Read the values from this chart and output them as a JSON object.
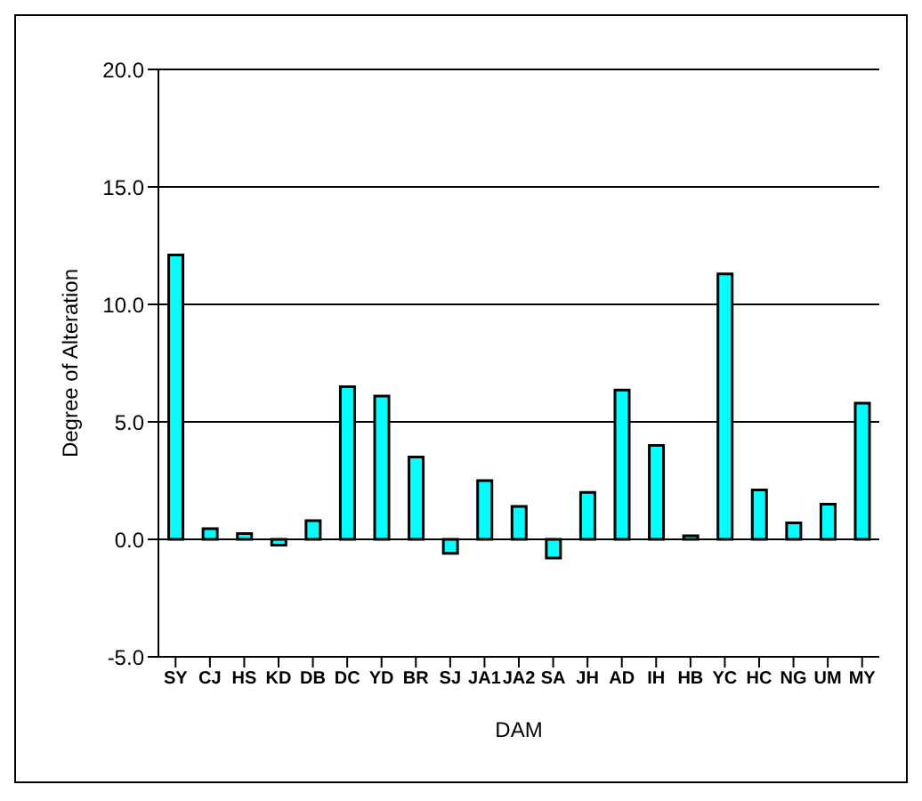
{
  "chart_data": {
    "type": "bar",
    "xlabel": "DAM",
    "ylabel": "Degree of Alteration",
    "categories": [
      "SY",
      "CJ",
      "HS",
      "KD",
      "DB",
      "DC",
      "YD",
      "BR",
      "SJ",
      "JA1",
      "JA2",
      "SA",
      "JH",
      "AD",
      "IH",
      "HB",
      "YC",
      "HC",
      "NG",
      "UM",
      "MY"
    ],
    "values": [
      12.1,
      0.45,
      0.25,
      -0.25,
      0.8,
      6.5,
      6.1,
      3.5,
      -0.6,
      2.5,
      1.4,
      -0.8,
      2.0,
      6.35,
      4.0,
      0.15,
      11.3,
      2.1,
      0.7,
      1.5,
      5.8
    ],
    "color": "#00ffff",
    "ylim": [
      -5,
      20
    ],
    "yticks": [
      {
        "value": -5,
        "label": "-5.0"
      },
      {
        "value": 0,
        "label": "0.0"
      },
      {
        "value": 5,
        "label": "5.0"
      },
      {
        "value": 10,
        "label": "10.0"
      },
      {
        "value": 15,
        "label": "15.0"
      },
      {
        "value": 20,
        "label": "20.0"
      }
    ],
    "grid": "y"
  }
}
